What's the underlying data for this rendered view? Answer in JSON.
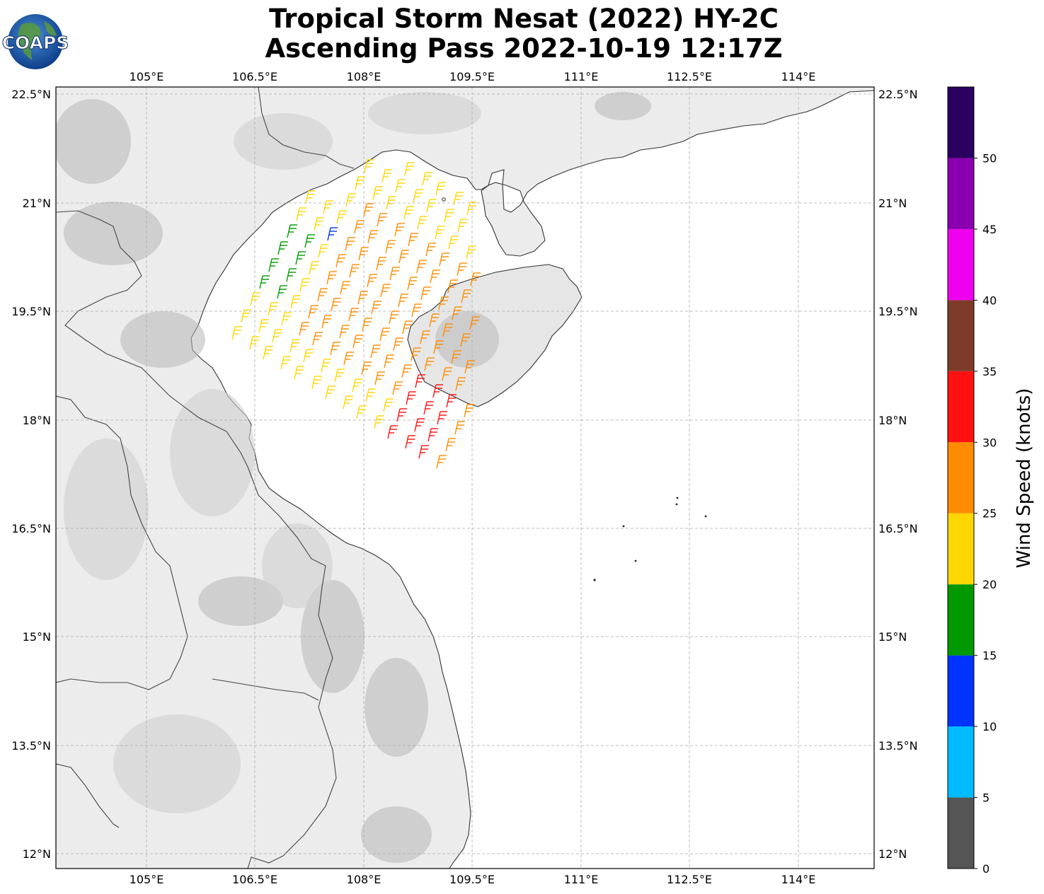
{
  "title": {
    "line1": "Tropical Storm Nesat (2022) HY-2C",
    "line2": "Ascending Pass 2022-10-19 12:17Z"
  },
  "logo": {
    "text": "COAPS"
  },
  "map": {
    "lon_ticks": [
      "105°E",
      "106.5°E",
      "108°E",
      "109.5°E",
      "111°E",
      "112.5°E",
      "114°E"
    ],
    "lat_ticks": [
      "22.5°N",
      "21°N",
      "19.5°N",
      "18°N",
      "16.5°N",
      "15°N",
      "13.5°N",
      "12°N"
    ]
  },
  "colorbar": {
    "label": "Wind Speed (knots)",
    "ticks": [
      "0",
      "5",
      "10",
      "15",
      "20",
      "25",
      "30",
      "35",
      "40",
      "45",
      "50"
    ],
    "colors": [
      "#555555",
      "#00bbff",
      "#0033ff",
      "#009900",
      "#ffd700",
      "#ff8c00",
      "#ff1111",
      "#7f3b2a",
      "#ee00ee",
      "#8a00b0",
      "#2a0060"
    ]
  }
}
